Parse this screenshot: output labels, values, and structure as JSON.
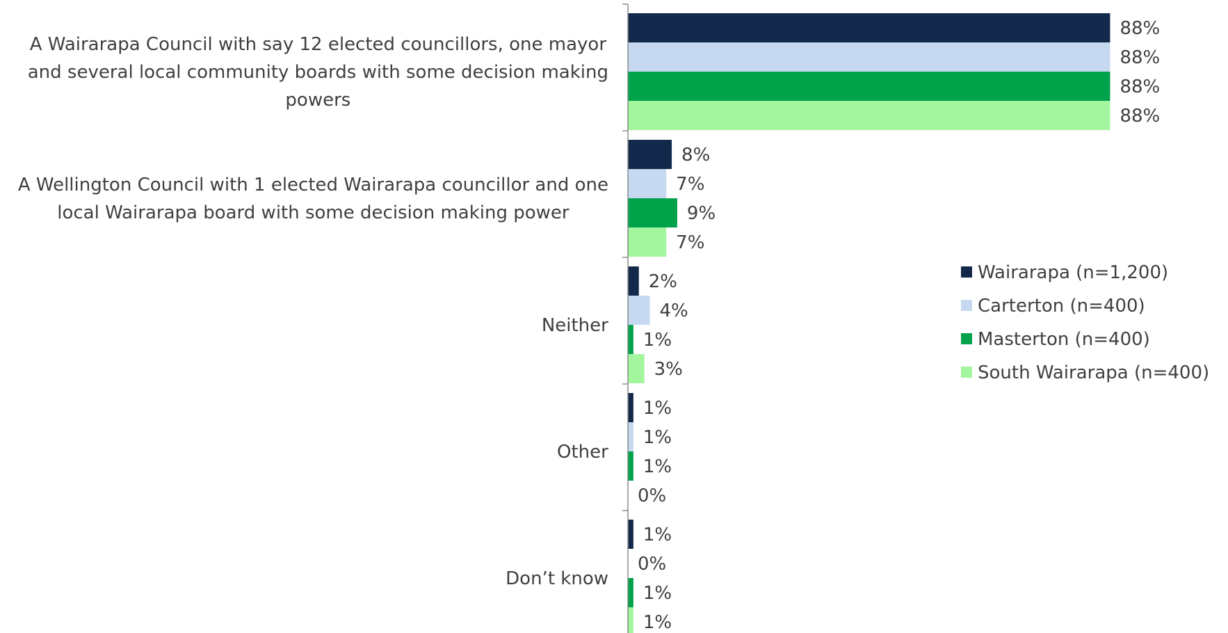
{
  "chart_data": {
    "type": "bar",
    "orientation": "horizontal",
    "categories": [
      "A Wairarapa Council  with say 12 elected councillors, one mayor and several local community boards with some decision making powers",
      "A Wellington Council with 1 elected Wairarapa councillor and one local Wairarapa board with some decision making power",
      "Neither",
      "Other",
      "Don’t know"
    ],
    "category_lines": [
      [
        "A Wairarapa Council  with say 12 elected councillors, one mayor",
        "and several local community boards with some decision making",
        "powers"
      ],
      [
        "A Wellington Council with 1 elected Wairarapa councillor and one",
        "local Wairarapa board with some decision making power"
      ],
      [
        "Neither"
      ],
      [
        "Other"
      ],
      [
        "Don’t know"
      ]
    ],
    "series": [
      {
        "name": "Wairarapa (n=1,200)",
        "values": [
          88,
          8,
          2,
          1,
          1
        ],
        "labels": [
          "88%",
          "8%",
          "2%",
          "1%",
          "1%"
        ]
      },
      {
        "name": "Carterton (n=400)",
        "values": [
          88,
          7,
          4,
          1,
          0
        ],
        "labels": [
          "88%",
          "7%",
          "4%",
          "1%",
          "0%"
        ]
      },
      {
        "name": "Masterton (n=400)",
        "values": [
          88,
          9,
          1,
          1,
          1
        ],
        "labels": [
          "88%",
          "9%",
          "1%",
          "1%",
          "1%"
        ]
      },
      {
        "name": "South Wairarapa (n=400)",
        "values": [
          88,
          7,
          3,
          0,
          1
        ],
        "labels": [
          "88%",
          "7%",
          "3%",
          "0%",
          "1%"
        ]
      }
    ],
    "colors": [
      "#13294b",
      "#c6d9f1",
      "#00a24a",
      "#a3f59e"
    ],
    "xlim": [
      0,
      100
    ],
    "grid": false,
    "legend_position": "right"
  }
}
